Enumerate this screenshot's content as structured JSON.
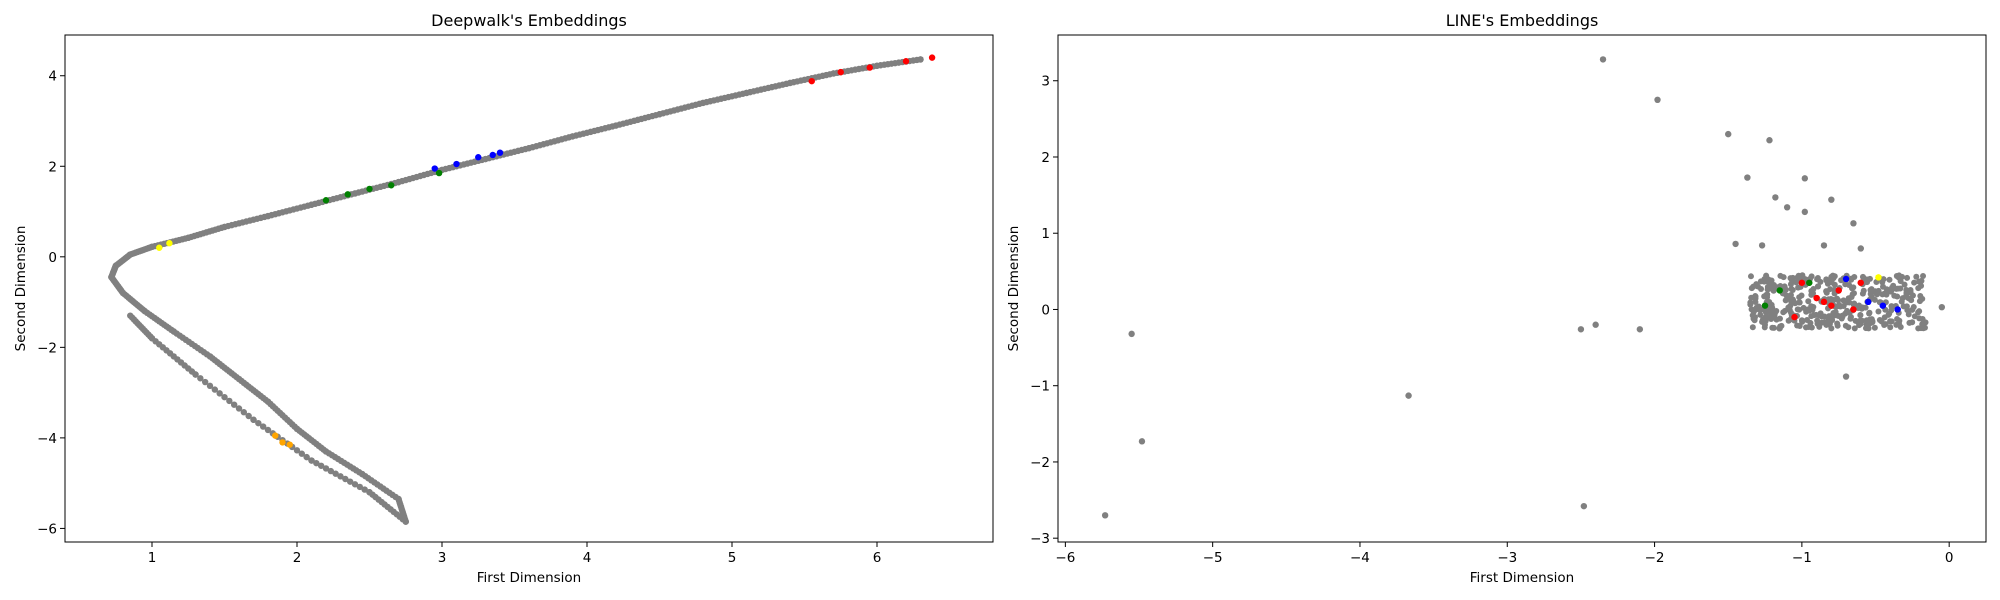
{
  "chart_data": [
    {
      "type": "scatter",
      "title": "Deepwalk's Embeddings",
      "xlabel": "First Dimension",
      "ylabel": "Second Dimension",
      "xlim": [
        0.4,
        6.8
      ],
      "ylim": [
        -6.3,
        4.9
      ],
      "xticks": [
        1,
        2,
        3,
        4,
        5,
        6
      ],
      "yticks": [
        -6,
        -4,
        -2,
        0,
        2,
        4
      ],
      "grid": false,
      "legend": "none",
      "series": [
        {
          "color": "#808080",
          "points": [
            [
              6.3,
              4.36
            ],
            [
              6.0,
              4.22
            ],
            [
              5.7,
              4.05
            ],
            [
              5.4,
              3.84
            ],
            [
              5.1,
              3.62
            ],
            [
              4.8,
              3.4
            ],
            [
              4.5,
              3.15
            ],
            [
              4.2,
              2.9
            ],
            [
              3.9,
              2.66
            ],
            [
              3.6,
              2.4
            ],
            [
              3.3,
              2.16
            ],
            [
              3.0,
              1.92
            ],
            [
              2.7,
              1.65
            ],
            [
              2.4,
              1.4
            ],
            [
              2.1,
              1.15
            ],
            [
              1.8,
              0.9
            ],
            [
              1.5,
              0.66
            ],
            [
              1.25,
              0.42
            ],
            [
              1.0,
              0.22
            ],
            [
              0.85,
              0.05
            ],
            [
              0.75,
              -0.2
            ],
            [
              0.72,
              -0.45
            ],
            [
              0.8,
              -0.8
            ],
            [
              0.95,
              -1.2
            ],
            [
              1.15,
              -1.65
            ],
            [
              1.4,
              -2.2
            ],
            [
              1.6,
              -2.7
            ],
            [
              1.8,
              -3.2
            ],
            [
              2.0,
              -3.8
            ],
            [
              2.2,
              -4.3
            ],
            [
              2.45,
              -4.8
            ],
            [
              2.7,
              -5.35
            ],
            [
              2.75,
              -5.85
            ],
            [
              2.5,
              -5.2
            ],
            [
              2.1,
              -4.5
            ],
            [
              1.7,
              -3.6
            ],
            [
              1.3,
              -2.6
            ],
            [
              1.0,
              -1.8
            ],
            [
              0.85,
              -1.3
            ]
          ]
        },
        {
          "color": "#ff0000",
          "points": [
            [
              6.38,
              4.4
            ],
            [
              6.2,
              4.32
            ],
            [
              5.95,
              4.18
            ],
            [
              5.75,
              4.08
            ],
            [
              5.55,
              3.88
            ]
          ]
        },
        {
          "color": "#0000ff",
          "points": [
            [
              2.95,
              1.95
            ],
            [
              3.1,
              2.05
            ],
            [
              3.25,
              2.2
            ],
            [
              3.4,
              2.3
            ],
            [
              3.35,
              2.25
            ]
          ]
        },
        {
          "color": "#008000",
          "points": [
            [
              2.2,
              1.25
            ],
            [
              2.35,
              1.38
            ],
            [
              2.5,
              1.5
            ],
            [
              2.65,
              1.58
            ],
            [
              2.98,
              1.85
            ]
          ]
        },
        {
          "color": "#ffff00",
          "points": [
            [
              1.05,
              0.2
            ],
            [
              1.12,
              0.3
            ]
          ]
        },
        {
          "color": "#ffa500",
          "points": [
            [
              1.85,
              -3.95
            ],
            [
              1.9,
              -4.1
            ],
            [
              1.95,
              -4.15
            ]
          ]
        }
      ]
    },
    {
      "type": "scatter",
      "title": "LINE's Embeddings",
      "xlabel": "First Dimension",
      "ylabel": "Second Dimension",
      "xlim": [
        -6.05,
        0.25
      ],
      "ylim": [
        -3.05,
        3.6
      ],
      "xticks": [
        -6,
        -5,
        -4,
        -3,
        -2,
        -1,
        0
      ],
      "yticks": [
        -3,
        -2,
        -1,
        0,
        1,
        2,
        3
      ],
      "grid": false,
      "legend": "none",
      "series": [
        {
          "color": "#808080",
          "points": [
            [
              -5.73,
              -2.7
            ],
            [
              -5.55,
              -0.32
            ],
            [
              -5.48,
              -1.73
            ],
            [
              -3.67,
              -1.13
            ],
            [
              -2.5,
              -0.26
            ],
            [
              -2.48,
              -2.58
            ],
            [
              -2.4,
              -0.2
            ],
            [
              -2.35,
              3.28
            ],
            [
              -2.1,
              -0.26
            ],
            [
              -1.98,
              2.75
            ],
            [
              -1.5,
              2.3
            ],
            [
              -1.45,
              0.86
            ],
            [
              -1.37,
              1.73
            ],
            [
              -1.27,
              0.84
            ],
            [
              -1.22,
              2.22
            ],
            [
              -1.18,
              1.47
            ],
            [
              -1.1,
              1.34
            ],
            [
              -0.98,
              1.28
            ],
            [
              -0.98,
              1.72
            ],
            [
              -0.85,
              0.84
            ],
            [
              -0.8,
              1.44
            ],
            [
              -0.7,
              -0.88
            ],
            [
              -0.65,
              1.13
            ],
            [
              -0.6,
              0.8
            ],
            [
              -0.05,
              0.03
            ]
          ]
        },
        {
          "color": "#ff0000",
          "points": [
            [
              -1.0,
              0.35
            ],
            [
              -0.9,
              0.15
            ],
            [
              -0.8,
              0.05
            ],
            [
              -0.75,
              0.25
            ],
            [
              -0.65,
              0.0
            ],
            [
              -0.6,
              0.35
            ],
            [
              -1.05,
              -0.1
            ],
            [
              -0.85,
              0.1
            ]
          ]
        },
        {
          "color": "#0000ff",
          "points": [
            [
              -0.55,
              0.1
            ],
            [
              -0.45,
              0.05
            ],
            [
              -0.35,
              0.0
            ],
            [
              -0.7,
              0.4
            ]
          ]
        },
        {
          "color": "#008000",
          "points": [
            [
              -1.25,
              0.05
            ],
            [
              -1.15,
              0.25
            ],
            [
              -0.95,
              0.35
            ]
          ]
        },
        {
          "color": "#ffff00",
          "points": [
            [
              -0.48,
              0.42
            ]
          ]
        }
      ]
    }
  ]
}
